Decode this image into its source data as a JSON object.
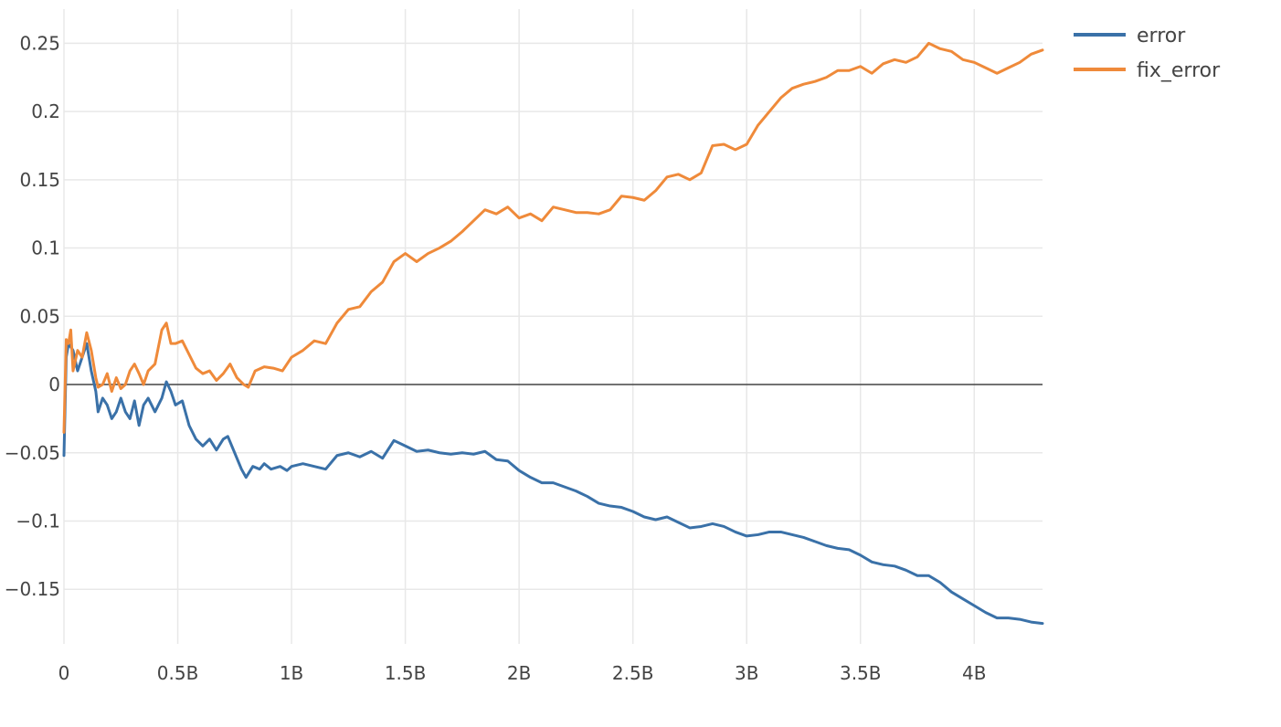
{
  "chart_data": {
    "type": "line",
    "title": "",
    "xlabel": "",
    "ylabel": "",
    "xlim": [
      0,
      4300000000
    ],
    "ylim": [
      -0.19,
      0.275
    ],
    "grid": true,
    "legend_placement": "top-right",
    "x_ticks": [
      {
        "value": 0,
        "label": "0"
      },
      {
        "value": 500000000,
        "label": "0.5B"
      },
      {
        "value": 1000000000,
        "label": "1B"
      },
      {
        "value": 1500000000,
        "label": "1.5B"
      },
      {
        "value": 2000000000,
        "label": "2B"
      },
      {
        "value": 2500000000,
        "label": "2.5B"
      },
      {
        "value": 3000000000,
        "label": "3B"
      },
      {
        "value": 3500000000,
        "label": "3.5B"
      },
      {
        "value": 4000000000,
        "label": "4B"
      }
    ],
    "y_ticks": [
      {
        "value": -0.15,
        "label": "−0.15"
      },
      {
        "value": -0.1,
        "label": "−0.1"
      },
      {
        "value": -0.05,
        "label": "−0.05"
      },
      {
        "value": 0,
        "label": "0"
      },
      {
        "value": 0.05,
        "label": "0.05"
      },
      {
        "value": 0.1,
        "label": "0.1"
      },
      {
        "value": 0.15,
        "label": "0.15"
      },
      {
        "value": 0.2,
        "label": "0.2"
      },
      {
        "value": 0.25,
        "label": "0.25"
      }
    ],
    "series": [
      {
        "name": "error",
        "color": "#3a71a8",
        "points": [
          [
            0,
            -0.052
          ],
          [
            10000000,
            0.02
          ],
          [
            20000000,
            0.03
          ],
          [
            40000000,
            0.025
          ],
          [
            60000000,
            0.01
          ],
          [
            80000000,
            0.02
          ],
          [
            100000000,
            0.03
          ],
          [
            120000000,
            0.01
          ],
          [
            140000000,
            -0.005
          ],
          [
            150000000,
            -0.02
          ],
          [
            170000000,
            -0.01
          ],
          [
            190000000,
            -0.015
          ],
          [
            210000000,
            -0.025
          ],
          [
            230000000,
            -0.02
          ],
          [
            250000000,
            -0.01
          ],
          [
            270000000,
            -0.02
          ],
          [
            290000000,
            -0.025
          ],
          [
            310000000,
            -0.012
          ],
          [
            330000000,
            -0.03
          ],
          [
            350000000,
            -0.015
          ],
          [
            370000000,
            -0.01
          ],
          [
            400000000,
            -0.02
          ],
          [
            430000000,
            -0.01
          ],
          [
            450000000,
            0.002
          ],
          [
            470000000,
            -0.005
          ],
          [
            490000000,
            -0.015
          ],
          [
            520000000,
            -0.012
          ],
          [
            550000000,
            -0.03
          ],
          [
            580000000,
            -0.04
          ],
          [
            610000000,
            -0.045
          ],
          [
            640000000,
            -0.04
          ],
          [
            670000000,
            -0.048
          ],
          [
            700000000,
            -0.04
          ],
          [
            720000000,
            -0.038
          ],
          [
            750000000,
            -0.05
          ],
          [
            780000000,
            -0.062
          ],
          [
            800000000,
            -0.068
          ],
          [
            830000000,
            -0.06
          ],
          [
            860000000,
            -0.062
          ],
          [
            880000000,
            -0.058
          ],
          [
            910000000,
            -0.062
          ],
          [
            950000000,
            -0.06
          ],
          [
            980000000,
            -0.063
          ],
          [
            1000000000,
            -0.06
          ],
          [
            1050000000,
            -0.058
          ],
          [
            1100000000,
            -0.06
          ],
          [
            1150000000,
            -0.062
          ],
          [
            1200000000,
            -0.052
          ],
          [
            1250000000,
            -0.05
          ],
          [
            1300000000,
            -0.053
          ],
          [
            1350000000,
            -0.049
          ],
          [
            1400000000,
            -0.054
          ],
          [
            1450000000,
            -0.041
          ],
          [
            1500000000,
            -0.045
          ],
          [
            1550000000,
            -0.049
          ],
          [
            1600000000,
            -0.048
          ],
          [
            1650000000,
            -0.05
          ],
          [
            1700000000,
            -0.051
          ],
          [
            1750000000,
            -0.05
          ],
          [
            1800000000,
            -0.051
          ],
          [
            1850000000,
            -0.049
          ],
          [
            1900000000,
            -0.055
          ],
          [
            1950000000,
            -0.056
          ],
          [
            2000000000,
            -0.063
          ],
          [
            2050000000,
            -0.068
          ],
          [
            2100000000,
            -0.072
          ],
          [
            2150000000,
            -0.072
          ],
          [
            2200000000,
            -0.075
          ],
          [
            2250000000,
            -0.078
          ],
          [
            2300000000,
            -0.082
          ],
          [
            2350000000,
            -0.087
          ],
          [
            2400000000,
            -0.089
          ],
          [
            2450000000,
            -0.09
          ],
          [
            2500000000,
            -0.093
          ],
          [
            2550000000,
            -0.097
          ],
          [
            2600000000,
            -0.099
          ],
          [
            2650000000,
            -0.097
          ],
          [
            2700000000,
            -0.101
          ],
          [
            2750000000,
            -0.105
          ],
          [
            2800000000,
            -0.104
          ],
          [
            2850000000,
            -0.102
          ],
          [
            2900000000,
            -0.104
          ],
          [
            2950000000,
            -0.108
          ],
          [
            3000000000,
            -0.111
          ],
          [
            3050000000,
            -0.11
          ],
          [
            3100000000,
            -0.108
          ],
          [
            3150000000,
            -0.108
          ],
          [
            3200000000,
            -0.11
          ],
          [
            3250000000,
            -0.112
          ],
          [
            3300000000,
            -0.115
          ],
          [
            3350000000,
            -0.118
          ],
          [
            3400000000,
            -0.12
          ],
          [
            3450000000,
            -0.121
          ],
          [
            3500000000,
            -0.125
          ],
          [
            3550000000,
            -0.13
          ],
          [
            3600000000,
            -0.132
          ],
          [
            3650000000,
            -0.133
          ],
          [
            3700000000,
            -0.136
          ],
          [
            3750000000,
            -0.14
          ],
          [
            3800000000,
            -0.14
          ],
          [
            3850000000,
            -0.145
          ],
          [
            3900000000,
            -0.152
          ],
          [
            3950000000,
            -0.157
          ],
          [
            4000000000,
            -0.162
          ],
          [
            4050000000,
            -0.167
          ],
          [
            4100000000,
            -0.171
          ],
          [
            4150000000,
            -0.171
          ],
          [
            4200000000,
            -0.172
          ],
          [
            4250000000,
            -0.174
          ],
          [
            4300000000,
            -0.175
          ]
        ]
      },
      {
        "name": "fix_error",
        "color": "#ef8a3a",
        "points": [
          [
            0,
            -0.035
          ],
          [
            10000000,
            0.033
          ],
          [
            20000000,
            0.03
          ],
          [
            30000000,
            0.04
          ],
          [
            40000000,
            0.01
          ],
          [
            60000000,
            0.025
          ],
          [
            80000000,
            0.02
          ],
          [
            100000000,
            0.038
          ],
          [
            120000000,
            0.025
          ],
          [
            140000000,
            0.005
          ],
          [
            150000000,
            -0.002
          ],
          [
            170000000,
            0.0
          ],
          [
            190000000,
            0.008
          ],
          [
            210000000,
            -0.005
          ],
          [
            230000000,
            0.005
          ],
          [
            250000000,
            -0.003
          ],
          [
            270000000,
            0.0
          ],
          [
            290000000,
            0.01
          ],
          [
            310000000,
            0.015
          ],
          [
            330000000,
            0.008
          ],
          [
            350000000,
            0.0
          ],
          [
            370000000,
            0.01
          ],
          [
            400000000,
            0.015
          ],
          [
            430000000,
            0.04
          ],
          [
            450000000,
            0.045
          ],
          [
            470000000,
            0.03
          ],
          [
            490000000,
            0.03
          ],
          [
            520000000,
            0.032
          ],
          [
            550000000,
            0.022
          ],
          [
            580000000,
            0.012
          ],
          [
            610000000,
            0.008
          ],
          [
            640000000,
            0.01
          ],
          [
            670000000,
            0.003
          ],
          [
            700000000,
            0.008
          ],
          [
            730000000,
            0.015
          ],
          [
            760000000,
            0.005
          ],
          [
            790000000,
            0.0
          ],
          [
            810000000,
            -0.002
          ],
          [
            840000000,
            0.01
          ],
          [
            880000000,
            0.013
          ],
          [
            920000000,
            0.012
          ],
          [
            960000000,
            0.01
          ],
          [
            1000000000,
            0.02
          ],
          [
            1050000000,
            0.025
          ],
          [
            1100000000,
            0.032
          ],
          [
            1150000000,
            0.03
          ],
          [
            1200000000,
            0.045
          ],
          [
            1250000000,
            0.055
          ],
          [
            1300000000,
            0.057
          ],
          [
            1350000000,
            0.068
          ],
          [
            1400000000,
            0.075
          ],
          [
            1450000000,
            0.09
          ],
          [
            1500000000,
            0.096
          ],
          [
            1550000000,
            0.09
          ],
          [
            1600000000,
            0.096
          ],
          [
            1650000000,
            0.1
          ],
          [
            1700000000,
            0.105
          ],
          [
            1750000000,
            0.112
          ],
          [
            1800000000,
            0.12
          ],
          [
            1850000000,
            0.128
          ],
          [
            1900000000,
            0.125
          ],
          [
            1950000000,
            0.13
          ],
          [
            2000000000,
            0.122
          ],
          [
            2050000000,
            0.125
          ],
          [
            2100000000,
            0.12
          ],
          [
            2150000000,
            0.13
          ],
          [
            2200000000,
            0.128
          ],
          [
            2250000000,
            0.126
          ],
          [
            2300000000,
            0.126
          ],
          [
            2350000000,
            0.125
          ],
          [
            2400000000,
            0.128
          ],
          [
            2450000000,
            0.138
          ],
          [
            2500000000,
            0.137
          ],
          [
            2550000000,
            0.135
          ],
          [
            2600000000,
            0.142
          ],
          [
            2650000000,
            0.152
          ],
          [
            2700000000,
            0.154
          ],
          [
            2750000000,
            0.15
          ],
          [
            2800000000,
            0.155
          ],
          [
            2850000000,
            0.175
          ],
          [
            2900000000,
            0.176
          ],
          [
            2950000000,
            0.172
          ],
          [
            3000000000,
            0.176
          ],
          [
            3050000000,
            0.19
          ],
          [
            3100000000,
            0.2
          ],
          [
            3150000000,
            0.21
          ],
          [
            3200000000,
            0.217
          ],
          [
            3250000000,
            0.22
          ],
          [
            3300000000,
            0.222
          ],
          [
            3350000000,
            0.225
          ],
          [
            3400000000,
            0.23
          ],
          [
            3450000000,
            0.23
          ],
          [
            3500000000,
            0.233
          ],
          [
            3550000000,
            0.228
          ],
          [
            3600000000,
            0.235
          ],
          [
            3650000000,
            0.238
          ],
          [
            3700000000,
            0.236
          ],
          [
            3750000000,
            0.24
          ],
          [
            3800000000,
            0.25
          ],
          [
            3850000000,
            0.246
          ],
          [
            3900000000,
            0.244
          ],
          [
            3950000000,
            0.238
          ],
          [
            4000000000,
            0.236
          ],
          [
            4050000000,
            0.232
          ],
          [
            4100000000,
            0.228
          ],
          [
            4150000000,
            0.232
          ],
          [
            4200000000,
            0.236
          ],
          [
            4250000000,
            0.242
          ],
          [
            4300000000,
            0.245
          ]
        ]
      }
    ]
  }
}
